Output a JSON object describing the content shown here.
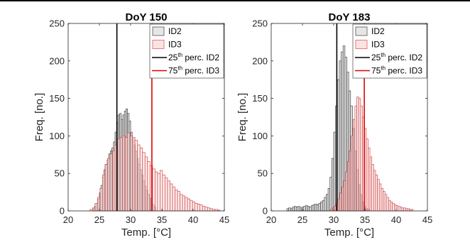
{
  "chart_data": [
    {
      "type": "histogram",
      "title": "DoY 150",
      "xlabel": "Temp. [°C]",
      "ylabel": "Freq. [no.]",
      "xlim": [
        20,
        45
      ],
      "ylim": [
        0,
        250
      ],
      "xticks": [
        20,
        25,
        30,
        35,
        40,
        45
      ],
      "yticks": [
        0,
        50,
        100,
        150,
        200,
        250
      ],
      "legend_position": "top-right",
      "legend": [
        {
          "label": "ID2",
          "kind": "patch",
          "color": "#555555",
          "fill": "#e6e6e6"
        },
        {
          "label": "ID3",
          "kind": "patch",
          "color": "#e06060",
          "fill": "#fbe3e3"
        },
        {
          "label": "25",
          "sup": "th",
          "rest": " perc. ID2",
          "kind": "line",
          "color": "#000000"
        },
        {
          "label": "75",
          "sup": "th",
          "rest": " perc. ID3",
          "kind": "line",
          "color": "#e00000"
        }
      ],
      "vlines": [
        {
          "x": 27.8,
          "color": "#000000"
        },
        {
          "x": 33.4,
          "color": "#e00000"
        }
      ],
      "series": [
        {
          "name": "ID2",
          "stroke": "#404040",
          "fill": "#d9d9d9",
          "bin_start": 24,
          "bin_width": 0.25,
          "counts": [
            3,
            6,
            10,
            16,
            24,
            34,
            45,
            55,
            62,
            68,
            76,
            80,
            84,
            92,
            105,
            118,
            128,
            130,
            122,
            128,
            133,
            136,
            130,
            120,
            105,
            96,
            88,
            80,
            70,
            62,
            55,
            48,
            40,
            33,
            27,
            22,
            17,
            12,
            8,
            5
          ]
        },
        {
          "name": "ID3",
          "stroke": "#d04a4a",
          "fill": "#fbe2e2",
          "bin_start": 23.5,
          "bin_width": 0.4,
          "counts": [
            2,
            4,
            10,
            18,
            30,
            48,
            62,
            70,
            76,
            80,
            88,
            96,
            98,
            100,
            98,
            104,
            100,
            98,
            94,
            88,
            84,
            78,
            72,
            66,
            60,
            56,
            52,
            50,
            54,
            48,
            44,
            40,
            36,
            32,
            28,
            26,
            22,
            20,
            18,
            16,
            14,
            12,
            10,
            9,
            8,
            6,
            5,
            4,
            3,
            2,
            2,
            1
          ]
        }
      ]
    },
    {
      "type": "histogram",
      "title": "DoY 183",
      "xlabel": "Temp. [°C]",
      "ylabel": "Freq. [no.]",
      "xlim": [
        20,
        45
      ],
      "ylim": [
        0,
        250
      ],
      "xticks": [
        20,
        25,
        30,
        35,
        40,
        45
      ],
      "yticks": [
        0,
        50,
        100,
        150,
        200,
        250
      ],
      "legend_position": "top-right",
      "legend": [
        {
          "label": "ID2",
          "kind": "patch",
          "color": "#555555",
          "fill": "#e6e6e6"
        },
        {
          "label": "ID3",
          "kind": "patch",
          "color": "#e06060",
          "fill": "#fbe3e3"
        },
        {
          "label": "25",
          "sup": "th",
          "rest": " perc. ID2",
          "kind": "line",
          "color": "#000000"
        },
        {
          "label": "75",
          "sup": "th",
          "rest": " perc. ID3",
          "kind": "line",
          "color": "#e00000"
        }
      ],
      "vlines": [
        {
          "x": 30.5,
          "color": "#000000"
        },
        {
          "x": 34.9,
          "color": "#e00000"
        }
      ],
      "series": [
        {
          "name": "ID2",
          "stroke": "#404040",
          "fill": "#d9d9d9",
          "bin_start": 22.5,
          "bin_width": 0.3,
          "counts": [
            3,
            4,
            3,
            5,
            6,
            5,
            6,
            4,
            5,
            6,
            7,
            6,
            5,
            7,
            8,
            9,
            8,
            10,
            12,
            14,
            18,
            22,
            30,
            45,
            70,
            105,
            140,
            175,
            200,
            212,
            220,
            205,
            185,
            160,
            140,
            110,
            80,
            55,
            35,
            22,
            12,
            6,
            3,
            2
          ]
        },
        {
          "name": "ID3",
          "stroke": "#d04a4a",
          "fill": "#fbe2e2",
          "bin_start": 29.5,
          "bin_width": 0.3,
          "counts": [
            2,
            4,
            6,
            10,
            16,
            24,
            32,
            40,
            52,
            66,
            80,
            100,
            122,
            140,
            152,
            150,
            140,
            125,
            110,
            96,
            84,
            72,
            62,
            54,
            48,
            42,
            36,
            30,
            26,
            22,
            18,
            14,
            12,
            10,
            8,
            7,
            6,
            5,
            4,
            4,
            3,
            3,
            2,
            2
          ]
        }
      ]
    }
  ]
}
